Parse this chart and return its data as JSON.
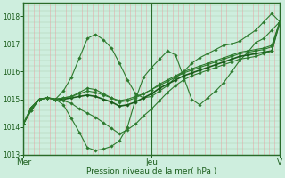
{
  "xlabel": "Pression niveau de la mer( hPa )",
  "ylim": [
    1013.0,
    1018.5
  ],
  "xlim": [
    0,
    1
  ],
  "yticks": [
    1013,
    1014,
    1015,
    1016,
    1017,
    1018
  ],
  "xtick_positions": [
    0.0,
    0.5,
    1.0
  ],
  "xtick_labels": [
    "Mer",
    "Jeu",
    "V"
  ],
  "background_color": "#ceeede",
  "plot_bg_color": "#ceeede",
  "grid_color_v": "#e8aaaa",
  "grid_color_h": "#aacaaa",
  "border_color": "#2a6b2a",
  "marker": "D",
  "markersize": 1.8,
  "series": [
    {
      "color": "#2d7a2d",
      "lw": 0.8,
      "y": [
        1014.1,
        1014.6,
        1015.0,
        1015.05,
        1015.0,
        1015.3,
        1015.8,
        1016.5,
        1017.2,
        1017.35,
        1017.15,
        1016.85,
        1016.3,
        1015.7,
        1015.2,
        1015.05,
        1015.1,
        1015.3,
        1015.5,
        1015.8,
        1016.0,
        1016.3,
        1016.5,
        1016.65,
        1016.8,
        1016.95,
        1017.0,
        1017.1,
        1017.3,
        1017.5,
        1017.8,
        1018.1,
        1017.8
      ]
    },
    {
      "color": "#2d7a2d",
      "lw": 0.8,
      "y": [
        1014.1,
        1014.6,
        1015.0,
        1015.05,
        1015.0,
        1014.8,
        1014.3,
        1013.8,
        1013.25,
        1013.15,
        1013.2,
        1013.3,
        1013.5,
        1014.0,
        1015.0,
        1015.8,
        1016.15,
        1016.45,
        1016.75,
        1016.6,
        1015.8,
        1015.0,
        1014.8,
        1015.05,
        1015.3,
        1015.6,
        1016.0,
        1016.4,
        1016.7,
        1017.05,
        1017.2,
        1017.5,
        1017.8
      ]
    },
    {
      "color": "#1a5c1a",
      "lw": 1.2,
      "y": [
        1014.1,
        1014.7,
        1015.0,
        1015.05,
        1015.0,
        1015.0,
        1015.05,
        1015.1,
        1015.15,
        1015.1,
        1015.0,
        1014.9,
        1014.75,
        1014.8,
        1014.9,
        1015.05,
        1015.2,
        1015.4,
        1015.55,
        1015.7,
        1015.85,
        1015.95,
        1016.05,
        1016.15,
        1016.25,
        1016.35,
        1016.45,
        1016.55,
        1016.6,
        1016.65,
        1016.7,
        1016.75,
        1017.8
      ]
    },
    {
      "color": "#2d7a2d",
      "lw": 0.8,
      "y": [
        1014.1,
        1014.7,
        1015.0,
        1015.05,
        1015.0,
        1015.05,
        1015.1,
        1015.2,
        1015.3,
        1015.25,
        1015.15,
        1015.05,
        1014.95,
        1015.0,
        1015.1,
        1015.2,
        1015.35,
        1015.5,
        1015.65,
        1015.8,
        1015.95,
        1016.05,
        1016.15,
        1016.25,
        1016.35,
        1016.45,
        1016.55,
        1016.65,
        1016.7,
        1016.75,
        1016.8,
        1016.9,
        1017.8
      ]
    },
    {
      "color": "#2d7a2d",
      "lw": 0.8,
      "y": [
        1014.1,
        1014.7,
        1015.0,
        1015.05,
        1015.0,
        1015.05,
        1015.1,
        1015.25,
        1015.4,
        1015.35,
        1015.2,
        1015.05,
        1014.9,
        1014.95,
        1015.05,
        1015.2,
        1015.35,
        1015.55,
        1015.7,
        1015.85,
        1016.0,
        1016.1,
        1016.2,
        1016.3,
        1016.4,
        1016.5,
        1016.6,
        1016.7,
        1016.75,
        1016.8,
        1016.85,
        1016.95,
        1017.8
      ]
    },
    {
      "color": "#2d7a2d",
      "lw": 0.8,
      "y": [
        1014.1,
        1014.7,
        1015.0,
        1015.05,
        1015.0,
        1014.95,
        1014.85,
        1014.65,
        1014.5,
        1014.35,
        1014.15,
        1013.95,
        1013.75,
        1013.9,
        1014.1,
        1014.4,
        1014.65,
        1014.95,
        1015.25,
        1015.5,
        1015.7,
        1015.85,
        1015.95,
        1016.05,
        1016.15,
        1016.25,
        1016.35,
        1016.45,
        1016.5,
        1016.55,
        1016.65,
        1016.75,
        1017.8
      ]
    }
  ],
  "n_vgrid": 49,
  "n_hgrid_minor": 5
}
